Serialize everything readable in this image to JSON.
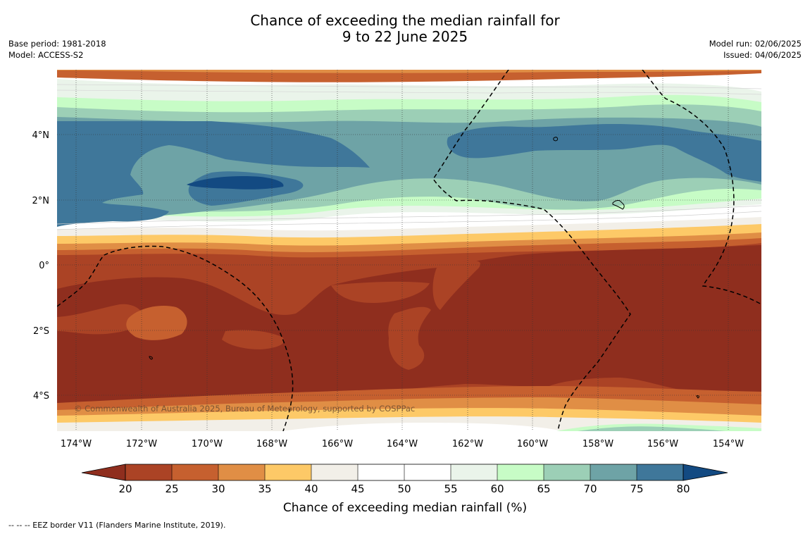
{
  "title": {
    "line1": "Chance of exceeding the median rainfall for",
    "line2": "9 to 22 June 2025"
  },
  "header_left": {
    "base_period": "Base period: 1981-2018",
    "model": "Model: ACCESS-S2"
  },
  "header_right": {
    "model_run": "Model run: 02/06/2025",
    "issued": "Issued: 04/06/2025"
  },
  "map": {
    "region": "Central equatorial Pacific",
    "lon_range": [
      -174.6,
      -153.0
    ],
    "lat_range": [
      -5.2,
      5.8
    ],
    "lat_labels": [
      "4°N",
      "2°N",
      "0°",
      "2°S",
      "4°S"
    ],
    "lon_labels": [
      "174°W",
      "172°W",
      "170°W",
      "168°W",
      "166°W",
      "164°W",
      "162°W",
      "160°W",
      "158°W",
      "156°W",
      "154°W"
    ],
    "eez_border_style": "dashed black",
    "copyright": "© Commonwealth of Australia 2025, Bureau of Meteorology, supported by COSPPac"
  },
  "colorbar": {
    "ticks": [
      "20",
      "25",
      "30",
      "35",
      "40",
      "45",
      "50",
      "55",
      "60",
      "65",
      "70",
      "75",
      "80"
    ],
    "label": "Chance of exceeding median rainfall (%)",
    "under_color": "#8f2e1e",
    "over_color": "#134a82",
    "colors": [
      "#ab4325",
      "#c6602f",
      "#e08e45",
      "#fdc967",
      "#f2efe8",
      "#ffffff",
      "#ffffff",
      "#eaf4ea",
      "#c7fcc6",
      "#9ccfb6",
      "#6ea3a6",
      "#3f779a"
    ]
  },
  "footer": {
    "legend": "--  --  -- EEZ border V11 (Flanders Marine Institute, 2019)."
  }
}
